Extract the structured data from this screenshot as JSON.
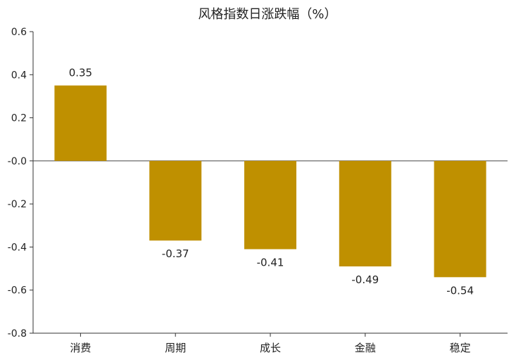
{
  "chart_data": {
    "type": "bar",
    "title": "风格指数日涨跌幅（%）",
    "categories": [
      "消费",
      "周期",
      "成长",
      "金融",
      "稳定"
    ],
    "values": [
      0.35,
      -0.37,
      -0.41,
      -0.49,
      -0.54
    ],
    "data_labels": [
      "0.35",
      "-0.37",
      "-0.41",
      "-0.49",
      "-0.54"
    ],
    "ylim": [
      -0.8,
      0.6
    ],
    "yticks": [
      0.6,
      0.4,
      0.2,
      0.0,
      -0.2,
      -0.4,
      -0.6,
      -0.8
    ],
    "ytick_labels": [
      "0.6",
      "0.4",
      "0.2",
      "-0.0",
      "-0.2",
      "-0.4",
      "-0.6",
      "-0.8"
    ],
    "xlabel": "",
    "ylabel": "",
    "grid": false,
    "legend": "none",
    "bar_color": "#BF9000"
  }
}
